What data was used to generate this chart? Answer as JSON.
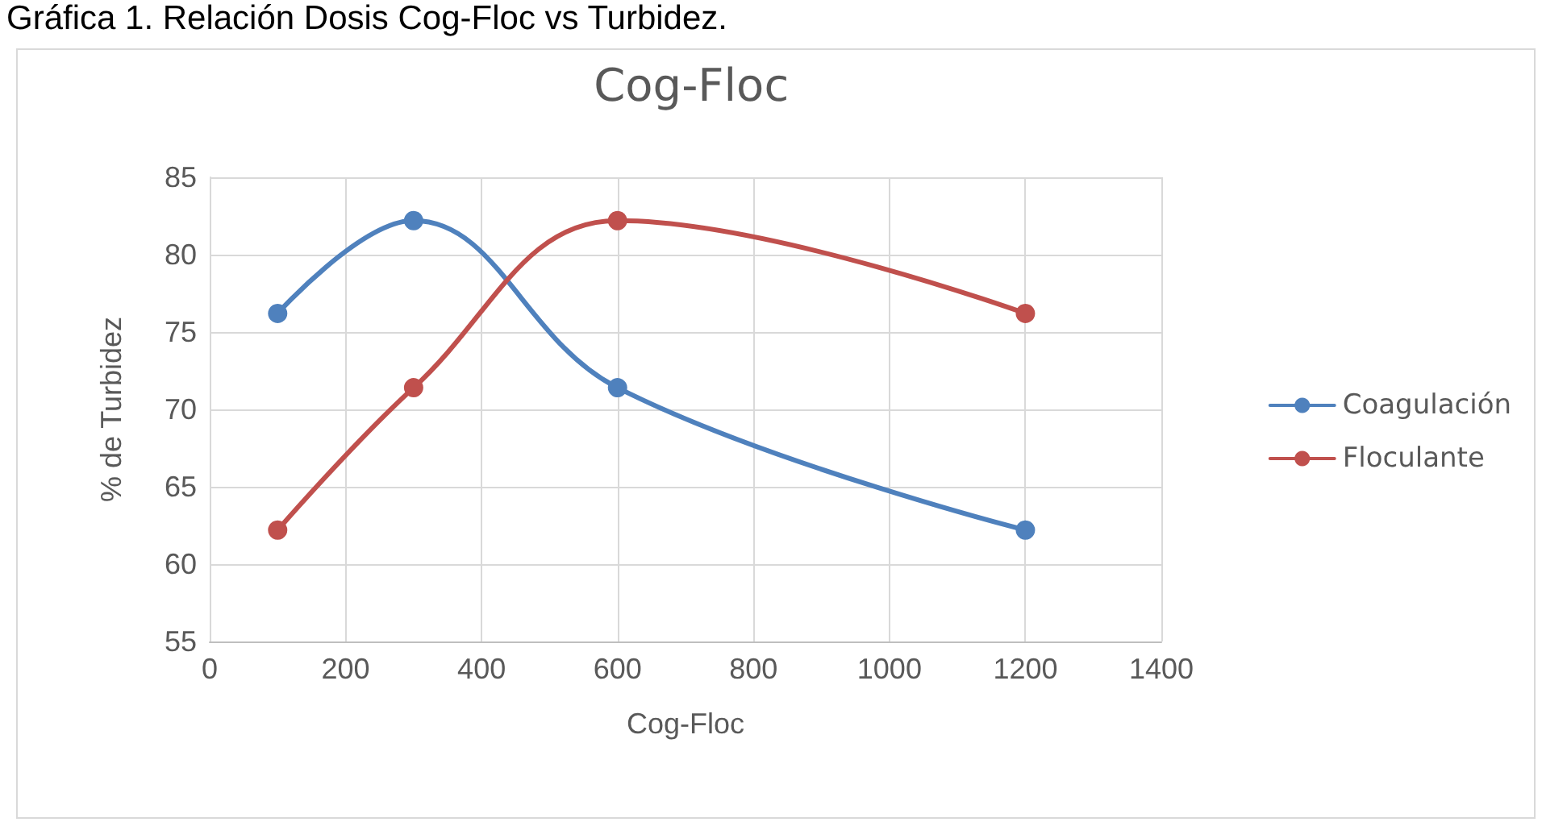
{
  "chart_data": {
    "type": "line",
    "title": "Cog-Floc",
    "xlabel": "Cog-Floc",
    "ylabel": "% de Turbidez",
    "annotations": [
      "Gráfica 1. Relación Dosis Cog-Floc vs Turbidez."
    ],
    "x": [
      100,
      300,
      600,
      1200
    ],
    "series": [
      {
        "name": "Coagulación",
        "color": "#4f81bd",
        "values": [
          76.2,
          82.2,
          71.4,
          62.2
        ]
      },
      {
        "name": "Floculante",
        "color": "#c0504d",
        "values": [
          62.2,
          71.4,
          82.2,
          76.2
        ]
      }
    ],
    "xlim": [
      0,
      1400
    ],
    "xticks": [
      0,
      200,
      400,
      600,
      800,
      1000,
      1200,
      1400
    ],
    "ylim": [
      55,
      85
    ],
    "yticks": [
      55,
      60,
      65,
      70,
      75,
      80,
      85
    ],
    "grid": true,
    "legend": "right",
    "marker": "circle",
    "line_style": "solid"
  }
}
